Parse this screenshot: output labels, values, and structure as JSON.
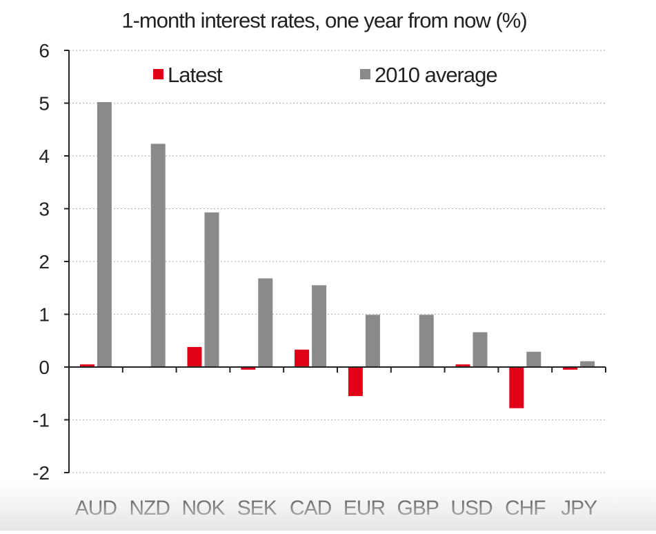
{
  "chart_data": {
    "type": "bar",
    "title": "1-month interest rates, one year from now (%)",
    "xlabel": "",
    "ylabel": "",
    "ylim": [
      -2,
      6
    ],
    "yticks": [
      6,
      5,
      4,
      3,
      2,
      1,
      0,
      -1,
      -2
    ],
    "grid": true,
    "legend_position": "top",
    "categories": [
      "AUD",
      "NZD",
      "NOK",
      "SEK",
      "CAD",
      "EUR",
      "GBP",
      "USD",
      "CHF",
      "JPY"
    ],
    "series": [
      {
        "name": "Latest",
        "color": "#e00018",
        "values": [
          0.05,
          0.0,
          0.38,
          -0.05,
          0.33,
          -0.55,
          0.0,
          0.05,
          -0.78,
          -0.05
        ]
      },
      {
        "name": "2010 average",
        "color": "#8a8a8a",
        "values": [
          5.02,
          4.23,
          2.93,
          1.68,
          1.55,
          0.99,
          0.99,
          0.66,
          0.29,
          0.11
        ]
      }
    ]
  }
}
